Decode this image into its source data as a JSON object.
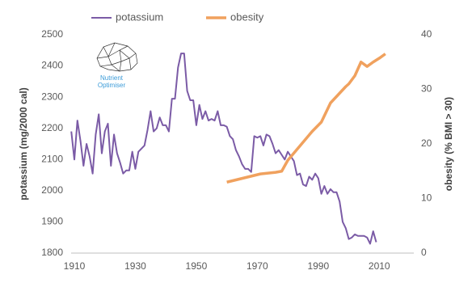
{
  "chart_data": {
    "type": "line",
    "xlim": [
      1910,
      2020
    ],
    "xticks": [
      1910,
      1930,
      1950,
      1970,
      1990,
      2010
    ],
    "ylim": [
      1800,
      2500
    ],
    "yticks": [
      1800,
      1900,
      2000,
      2100,
      2200,
      2300,
      2400,
      2500
    ],
    "y2lim": [
      0,
      40
    ],
    "y2ticks": [
      0,
      10,
      20,
      30,
      40
    ],
    "ylabel": "potassium (mg/2000 cal)",
    "y2label": "obesity (% BMI > 30)",
    "annotations": [
      "Nutrient",
      "Optimiser"
    ],
    "legend": "top",
    "series": [
      {
        "name": "potassium",
        "color": "#7b5ba6",
        "x": [
          1909,
          1910,
          1911,
          1912,
          1913,
          1914,
          1915,
          1916,
          1917,
          1918,
          1919,
          1920,
          1921,
          1922,
          1923,
          1924,
          1925,
          1926,
          1927,
          1928,
          1929,
          1930,
          1931,
          1932,
          1933,
          1934,
          1935,
          1936,
          1937,
          1938,
          1939,
          1940,
          1941,
          1942,
          1943,
          1944,
          1945,
          1946,
          1947,
          1948,
          1949,
          1950,
          1951,
          1952,
          1953,
          1954,
          1955,
          1956,
          1957,
          1958,
          1959,
          1960,
          1961,
          1962,
          1963,
          1964,
          1965,
          1966,
          1967,
          1968,
          1969,
          1970,
          1971,
          1972,
          1973,
          1974,
          1975,
          1976,
          1977,
          1978,
          1979,
          1980,
          1981,
          1982,
          1983,
          1984,
          1985,
          1986,
          1987,
          1988,
          1989,
          1990,
          1991,
          1992,
          1993,
          1994,
          1995,
          1996,
          1997,
          1998,
          1999,
          2000,
          2001,
          2002,
          2003,
          2004,
          2005,
          2006,
          2007,
          2008,
          2009
        ],
        "values": [
          2190,
          2100,
          2225,
          2160,
          2080,
          2150,
          2110,
          2055,
          2180,
          2245,
          2120,
          2190,
          2215,
          2080,
          2180,
          2120,
          2090,
          2055,
          2065,
          2065,
          2125,
          2070,
          2125,
          2135,
          2145,
          2195,
          2255,
          2190,
          2200,
          2235,
          2210,
          2210,
          2190,
          2295,
          2295,
          2395,
          2440,
          2440,
          2320,
          2290,
          2290,
          2210,
          2275,
          2230,
          2255,
          2225,
          2230,
          2225,
          2255,
          2210,
          2210,
          2205,
          2175,
          2165,
          2130,
          2110,
          2085,
          2070,
          2070,
          2060,
          2175,
          2170,
          2175,
          2145,
          2180,
          2175,
          2150,
          2120,
          2130,
          2115,
          2100,
          2125,
          2110,
          2095,
          2050,
          2055,
          2020,
          2015,
          2045,
          2035,
          2055,
          2040,
          1990,
          2015,
          1990,
          2005,
          1995,
          1995,
          1965,
          1900,
          1880,
          1845,
          1850,
          1860,
          1855,
          1855,
          1855,
          1850,
          1830,
          1870,
          1835
        ]
      },
      {
        "name": "obesity",
        "color": "#f0a15e",
        "axis": "y2",
        "x": [
          1960,
          1971,
          1976,
          1978,
          1980,
          1988,
          1991,
          1994,
          1999,
          2000,
          2002,
          2004,
          2006,
          2008,
          2010,
          2012
        ],
        "values": [
          13,
          14.5,
          14.8,
          15,
          17,
          22.3,
          24,
          27.5,
          30.5,
          31,
          32.5,
          35,
          34.2,
          35,
          35.7,
          36.5
        ]
      }
    ]
  }
}
